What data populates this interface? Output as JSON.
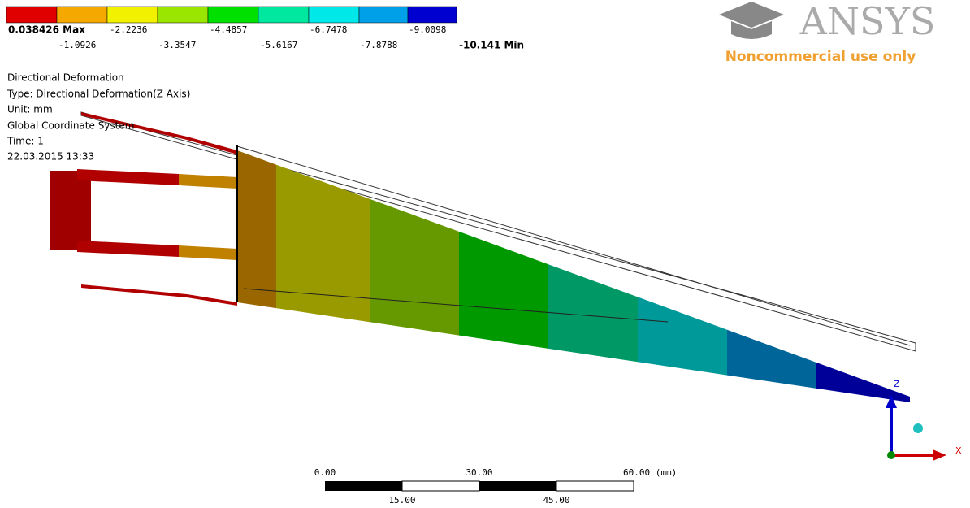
{
  "legend": {
    "top_labels": [
      "0.038426 Max",
      "-2.2236",
      "-4.4857",
      "-6.7478",
      "-9.0098"
    ],
    "bottom_labels": [
      "-1.0926",
      "-3.3547",
      "-5.6167",
      "-7.8788",
      "-10.141 Min"
    ]
  },
  "info": [
    "Directional Deformation",
    "Type: Directional Deformation(Z Axis)",
    "Unit: mm",
    "Global Coordinate System",
    "Time: 1",
    "22.03.2015 13:33"
  ],
  "logo": {
    "brand": "ANSYS",
    "note": "Noncommercial use only"
  },
  "scale_bar": {
    "top_labels": [
      "0.00",
      "30.00",
      "60.00 (mm)"
    ],
    "bottom_labels": [
      "15.00",
      "45.00"
    ]
  },
  "triad": {
    "z": "Z",
    "x": "X"
  }
}
